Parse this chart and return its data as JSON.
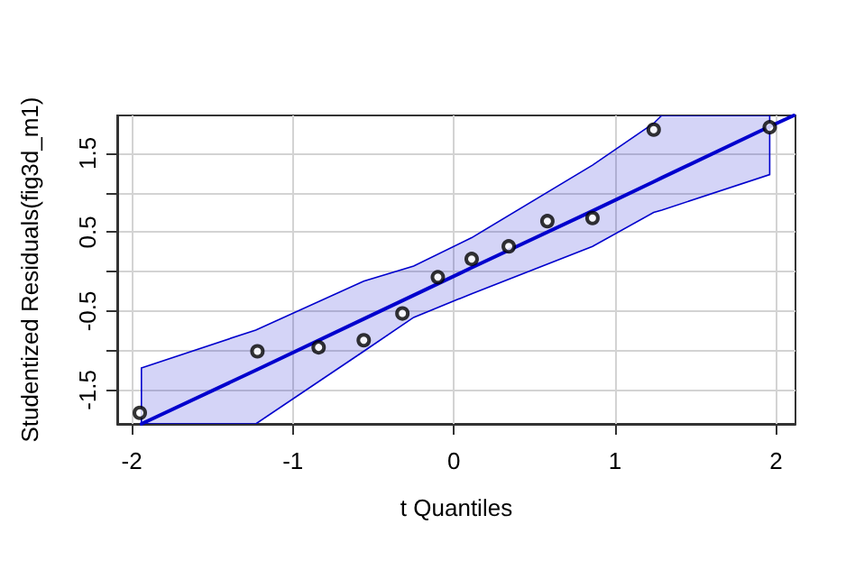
{
  "chart_data": {
    "type": "scatter",
    "xlabel": "t Quantiles",
    "ylabel": "Studentized Residuals(fig3d_m1)",
    "xlim": [
      -2.09,
      2.12
    ],
    "ylim": [
      -1.93,
      1.98
    ],
    "xticks": [
      -2,
      -1,
      0,
      1,
      2
    ],
    "yticks": [
      -1.5,
      {
        "value": -1,
        "label": null
      },
      -0.5,
      {
        "value": 0,
        "label": null
      },
      0.5,
      {
        "value": 1,
        "label": null
      },
      1.5
    ],
    "grid": true,
    "series": [
      {
        "marker": "circle",
        "color": "#000000",
        "x": [
          -1.95,
          -1.22,
          -0.84,
          -0.56,
          -0.32,
          -0.1,
          0.11,
          0.34,
          0.58,
          0.86,
          1.24,
          1.96
        ],
        "values": [
          -1.79,
          -1.01,
          -0.96,
          -0.87,
          -0.53,
          -0.07,
          0.16,
          0.32,
          0.64,
          0.68,
          1.8,
          1.83
        ]
      },
      {
        "type": "line",
        "marker": "none",
        "line_style": "solid",
        "color": "#0000cd",
        "x": [
          -1.94,
          -1.23,
          -0.56,
          -0.25,
          0.11,
          0.86,
          1.24,
          1.29,
          1.96,
          2.11
        ],
        "values": [
          -1.93,
          -1.25,
          -0.6,
          -0.3,
          0.05,
          0.77,
          1.14,
          1.19,
          1.84,
          1.98
        ],
        "lower": [
          -1.93,
          -1.93,
          -1.01,
          -0.58,
          -0.28,
          0.32,
          0.75,
          0.78,
          1.23,
          null
        ],
        "upper": [
          -1.22,
          -0.74,
          -0.12,
          0.07,
          0.43,
          1.35,
          1.88,
          1.98,
          1.98,
          null
        ]
      }
    ]
  }
}
